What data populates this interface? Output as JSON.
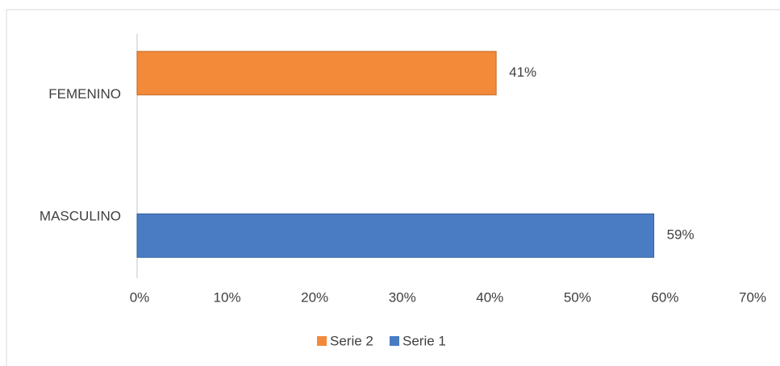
{
  "chart_data": {
    "type": "bar",
    "orientation": "horizontal",
    "categories": [
      "MASCULINO",
      "FEMENINO"
    ],
    "series": [
      {
        "name": "Serie 1",
        "color": "#4a7cc4",
        "values": [
          59,
          null
        ],
        "value_labels": [
          "59%",
          null
        ]
      },
      {
        "name": "Serie 2",
        "color": "#f28a3a",
        "values": [
          null,
          41
        ],
        "value_labels": [
          null,
          "41%"
        ]
      }
    ],
    "xlim": [
      0,
      70
    ],
    "xticks": [
      {
        "value": 0,
        "label": "0%"
      },
      {
        "value": 10,
        "label": "10%"
      },
      {
        "value": 20,
        "label": "20%"
      },
      {
        "value": 30,
        "label": "30%"
      },
      {
        "value": 40,
        "label": "40%"
      },
      {
        "value": 50,
        "label": "50%"
      },
      {
        "value": 60,
        "label": "60%"
      },
      {
        "value": 70,
        "label": "70%"
      }
    ],
    "grid": false,
    "legend": "bottom"
  }
}
